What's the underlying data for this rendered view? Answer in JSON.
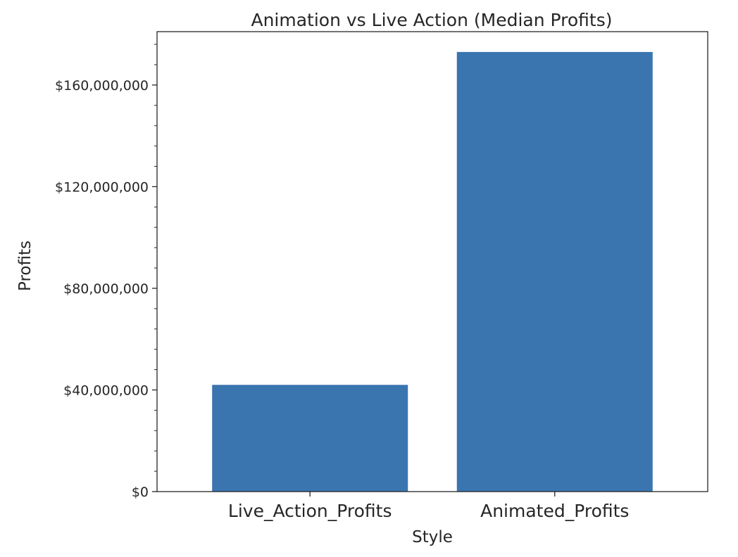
{
  "chart_data": {
    "type": "bar",
    "title": "Animation vs Live Action (Median Profits)",
    "xlabel": "Style",
    "ylabel": "Profits",
    "categories": [
      "Live_Action_Profits",
      "Animated_Profits"
    ],
    "values": [
      42000000,
      173000000
    ],
    "ylim": [
      0,
      181000000
    ],
    "yticks": [
      0,
      40000000,
      80000000,
      120000000,
      160000000
    ],
    "ytick_labels": [
      "$0",
      "$40,000,000",
      "$80,000,000",
      "$120,000,000",
      "$160,000,000"
    ],
    "minor_ticks_per_major": 4,
    "grid": false,
    "legend": "none",
    "bar_color": "#3a75b0"
  }
}
